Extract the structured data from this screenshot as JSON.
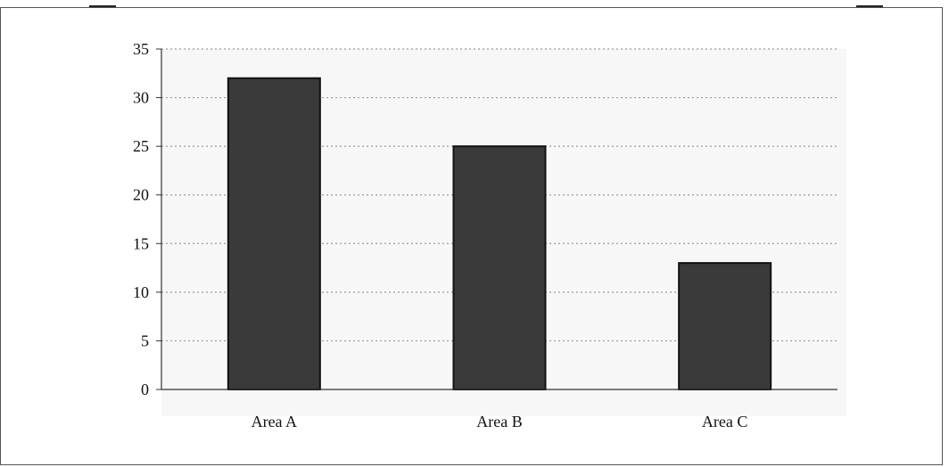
{
  "chart_data": {
    "type": "bar",
    "title": "",
    "xlabel": "",
    "ylabel": "",
    "categories": [
      "Area A",
      "Area B",
      "Area C"
    ],
    "values": [
      32,
      25,
      13
    ],
    "ylim": [
      0,
      35
    ],
    "yticks": [
      0,
      5,
      10,
      15,
      20,
      25,
      30,
      35
    ],
    "grid": true,
    "legend": "none",
    "colors": {
      "bar": "#3a3a3a",
      "bar_edge": "#111111",
      "grid": "#9a9a9a",
      "plot_bg": "#f7f7f7",
      "axis": "#333333"
    }
  }
}
